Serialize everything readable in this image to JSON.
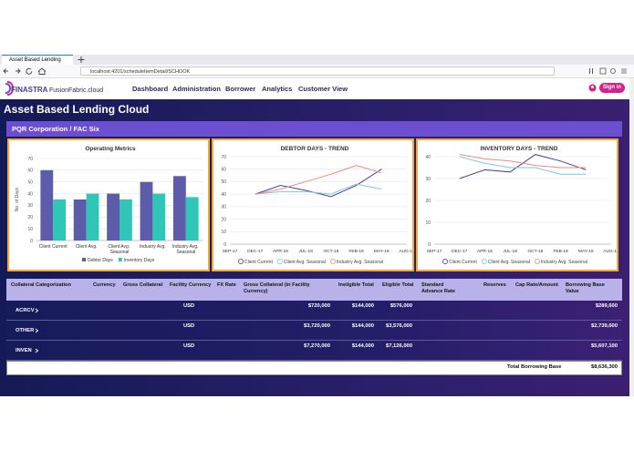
{
  "browser": {
    "tab_title": "Asset Based Lending",
    "url": "localhost:4201/scheduleItemDetail/SCHOOK"
  },
  "header": {
    "brand": "FINASTRA",
    "platform": "FusionFabric.cloud",
    "nav": [
      "Dashboard",
      "Administration",
      "Borrower",
      "Analytics",
      "Customer View"
    ],
    "sign_in": "Sign in"
  },
  "banner": "Asset Based Lending Cloud",
  "breadcrumb": [
    "PQR Corporation",
    "FAC Six"
  ],
  "breadcrumb_separator": "/",
  "chart_data": [
    {
      "type": "bar",
      "title": "Operating Metrics",
      "y_label": "No. of Days",
      "categories": [
        "Client Current",
        "Client Avg.",
        "Client Avg. Seasonal",
        "Industry Avg.",
        "Industry Avg. Seasonal"
      ],
      "series": [
        {
          "name": "Debtor Days",
          "color": "#5c5cab",
          "values": [
            60,
            35,
            40,
            50,
            55
          ]
        },
        {
          "name": "Inventory Days",
          "color": "#2fc6b8",
          "values": [
            35,
            40,
            35,
            40,
            37
          ]
        }
      ],
      "ylim": [
        0,
        70
      ],
      "yticks": [
        0,
        10,
        20,
        30,
        40,
        50,
        60,
        70
      ],
      "grid": true
    },
    {
      "type": "line",
      "title": "DEBTOR DAYS - TREND",
      "categories": [
        "SEP-17",
        "DEC-17",
        "APR-18",
        "JUL-18",
        "OCT-18",
        "FEB-19",
        "MAY-19",
        "AUG-19"
      ],
      "series": [
        {
          "name": "Client Current",
          "color": "#4b3f90",
          "values": [
            null,
            40,
            47,
            43,
            38,
            47,
            60,
            null
          ]
        },
        {
          "name": "Client Avg. Seasonal",
          "color": "#7cc6e6",
          "values": [
            null,
            40,
            42,
            42,
            40,
            48,
            44,
            null
          ]
        },
        {
          "name": "Industry Avg. Seasonal",
          "color": "#f08a80",
          "values": [
            null,
            40,
            44,
            50,
            56,
            63,
            57,
            null
          ]
        }
      ],
      "ylim": [
        0,
        70
      ],
      "yticks": [
        0,
        10,
        20,
        30,
        40,
        50,
        60,
        70
      ],
      "grid": true
    },
    {
      "type": "line",
      "title": "INVENTORY DAYS - TREND",
      "categories": [
        "SEP-17",
        "DEC-17",
        "APR-18",
        "JUL-18",
        "OCT-18",
        "FEB-19",
        "MAY-19",
        "AUG-19"
      ],
      "series": [
        {
          "name": "Client Current",
          "color": "#4b3f90",
          "values": [
            null,
            30,
            34,
            33,
            41,
            38,
            34,
            null
          ]
        },
        {
          "name": "Client Avg. Seasonal",
          "color": "#7cc6e6",
          "values": [
            null,
            40,
            37,
            35,
            35,
            32,
            32,
            null
          ]
        },
        {
          "name": "Industry Avg. Seasonal",
          "color": "#f08a80",
          "values": [
            null,
            41,
            39,
            38,
            36,
            35,
            35,
            null
          ]
        }
      ],
      "ylim": [
        0,
        40
      ],
      "yticks": [
        0,
        10,
        20,
        30,
        40
      ],
      "grid": true
    }
  ],
  "table": {
    "columns": [
      "Collateral Categorization",
      "Currency",
      "Gross Collateral",
      "Facility Currency",
      "FX Rate",
      "Gross Collateral (in Facility Currency)",
      "Ineligible Total",
      "Eligible Total",
      "Standard Advance Rate",
      "Reserves",
      "Cap Rate/Amount",
      "Borrowing Base Value"
    ],
    "rows": [
      {
        "category": "ACRCV",
        "facility_currency": "USD",
        "gross_collateral_facility": "$720,000",
        "ineligible_total": "$144,000",
        "eligible_total": "$576,000",
        "borrowing_base_value": "$289,600"
      },
      {
        "category": "OTHER",
        "facility_currency": "USD",
        "gross_collateral_facility": "$3,720,000",
        "ineligible_total": "$144,000",
        "eligible_total": "$3,576,000",
        "borrowing_base_value": "$2,739,600"
      },
      {
        "category": "INVEN",
        "facility_currency": "USD",
        "gross_collateral_facility": "$7,270,000",
        "ineligible_total": "$144,000",
        "eligible_total": "$7,126,000",
        "borrowing_base_value": "$5,607,100"
      }
    ],
    "total": {
      "label": "Total Borrowing Base",
      "value": "$8,636,300"
    }
  }
}
